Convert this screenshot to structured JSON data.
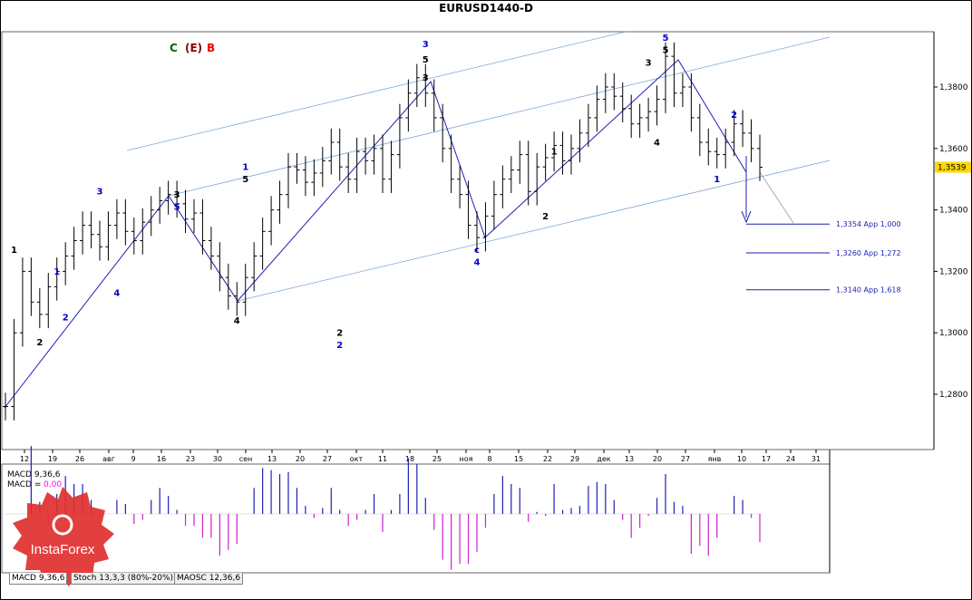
{
  "window": {
    "title": "EURUSD1440-D"
  },
  "wave_labels_header": [
    {
      "text": "C",
      "color": "#006400"
    },
    {
      "text": "(E)",
      "color": "#8b0000"
    },
    {
      "text": "B",
      "color": "#ff0000"
    }
  ],
  "current_price": "1,3539",
  "price_axis": [
    "1,3800",
    "1,3600",
    "1,3400",
    "1,3200",
    "1,3000",
    "1,2800"
  ],
  "date_axis": [
    "12",
    "19",
    "26",
    "авг",
    "9",
    "16",
    "23",
    "30",
    "сен",
    "13",
    "20",
    "27",
    "окт",
    "11",
    "18",
    "25",
    "ноя",
    "8",
    "15",
    "22",
    "29",
    "дек",
    "13",
    "20",
    "27",
    "янв",
    "10",
    "17",
    "24",
    "31"
  ],
  "targets": [
    {
      "price": 1.3354,
      "label": "1,3354 App 1,000"
    },
    {
      "price": 1.326,
      "label": "1,3260 App 1,272"
    },
    {
      "price": 1.314,
      "label": "1,3140 App 1,618"
    }
  ],
  "macd": {
    "title": "MACD 9,36,6",
    "prefix": "MACD = ",
    "value": "0,00",
    "value_color": "#ff00ff"
  },
  "tabs": [
    "MACD 9,36,6",
    "Stoch 13,3,3 (80%-20%)",
    "MAOSC 12,36,6"
  ],
  "watermark": {
    "text": "InstaForex"
  },
  "chart_data": {
    "type": "bar",
    "title": "EURUSD1440-D",
    "y_range": [
      1.262,
      1.398
    ],
    "x_categories": [
      "12",
      "19",
      "26",
      "авг",
      "9",
      "16",
      "23",
      "30",
      "сен",
      "13",
      "20",
      "27",
      "окт",
      "11",
      "18",
      "25",
      "ноя",
      "8",
      "15",
      "22",
      "29",
      "дек",
      "13",
      "20",
      "27",
      "янв",
      "10",
      "17",
      "24",
      "31"
    ],
    "close_path": [
      1.276,
      1.3,
      1.32,
      1.31,
      1.306,
      1.315,
      1.32,
      1.325,
      1.33,
      1.335,
      1.332,
      1.328,
      1.335,
      1.339,
      1.333,
      1.33,
      1.336,
      1.34,
      1.343,
      1.345,
      1.342,
      1.337,
      1.339,
      1.33,
      1.325,
      1.318,
      1.312,
      1.31,
      1.318,
      1.325,
      1.333,
      1.34,
      1.345,
      1.354,
      1.353,
      1.349,
      1.352,
      1.356,
      1.362,
      1.354,
      1.35,
      1.359,
      1.356,
      1.36,
      1.35,
      1.358,
      1.37,
      1.378,
      1.383,
      1.378,
      1.37,
      1.36,
      1.35,
      1.345,
      1.335,
      1.331,
      1.338,
      1.345,
      1.35,
      1.353,
      1.358,
      1.346,
      1.354,
      1.357,
      1.361,
      1.356,
      1.36,
      1.365,
      1.37,
      1.376,
      1.38,
      1.377,
      1.373,
      1.368,
      1.37,
      1.372,
      1.376,
      1.39,
      1.378,
      1.38,
      1.37,
      1.362,
      1.359,
      1.358,
      1.362,
      1.368,
      1.365,
      1.36,
      1.3539
    ],
    "wave_labels": [
      {
        "t": "1",
        "i": 1,
        "p": 1.326,
        "c": "#000"
      },
      {
        "t": "2",
        "i": 4,
        "p": 1.296,
        "c": "#000"
      },
      {
        "t": "1",
        "i": 6,
        "p": 1.319,
        "c": "#0000cc"
      },
      {
        "t": "2",
        "i": 7,
        "p": 1.304,
        "c": "#0000cc"
      },
      {
        "t": "3",
        "i": 11,
        "p": 1.345,
        "c": "#0000cc"
      },
      {
        "t": "4",
        "i": 13,
        "p": 1.312,
        "c": "#0000cc"
      },
      {
        "t": "5",
        "i": 20,
        "p": 1.34,
        "c": "#0000cc"
      },
      {
        "t": "3",
        "i": 20,
        "p": 1.344,
        "c": "#000"
      },
      {
        "t": "4",
        "i": 27,
        "p": 1.303,
        "c": "#000"
      },
      {
        "t": "1",
        "i": 28,
        "p": 1.353,
        "c": "#0000cc"
      },
      {
        "t": "5",
        "i": 28,
        "p": 1.349,
        "c": "#000"
      },
      {
        "t": "2",
        "i": 39,
        "p": 1.299,
        "c": "#000"
      },
      {
        "t": "2",
        "i": 39,
        "p": 1.295,
        "c": "#0000cc"
      },
      {
        "t": "3",
        "i": 49,
        "p": 1.382,
        "c": "#000"
      },
      {
        "t": "5",
        "i": 49,
        "p": 1.388,
        "c": "#000"
      },
      {
        "t": "3",
        "i": 49,
        "p": 1.393,
        "c": "#0000cc"
      },
      {
        "t": "4",
        "i": 55,
        "p": 1.322,
        "c": "#0000cc"
      },
      {
        "t": "c",
        "i": 55,
        "p": 1.326,
        "c": "#0000cc"
      },
      {
        "t": "1",
        "i": 64,
        "p": 1.358,
        "c": "#000"
      },
      {
        "t": "2",
        "i": 63,
        "p": 1.337,
        "c": "#000"
      },
      {
        "t": "5",
        "i": 77,
        "p": 1.395,
        "c": "#0000cc"
      },
      {
        "t": "5",
        "i": 77,
        "p": 1.391,
        "c": "#000"
      },
      {
        "t": "3",
        "i": 75,
        "p": 1.387,
        "c": "#000"
      },
      {
        "t": "4",
        "i": 76,
        "p": 1.361,
        "c": "#000"
      },
      {
        "t": "2",
        "i": 85,
        "p": 1.37,
        "c": "#0000cc"
      },
      {
        "t": "1",
        "i": 83,
        "p": 1.349,
        "c": "#0000cc"
      }
    ],
    "targets": [
      1.3354,
      1.326,
      1.314
    ]
  }
}
